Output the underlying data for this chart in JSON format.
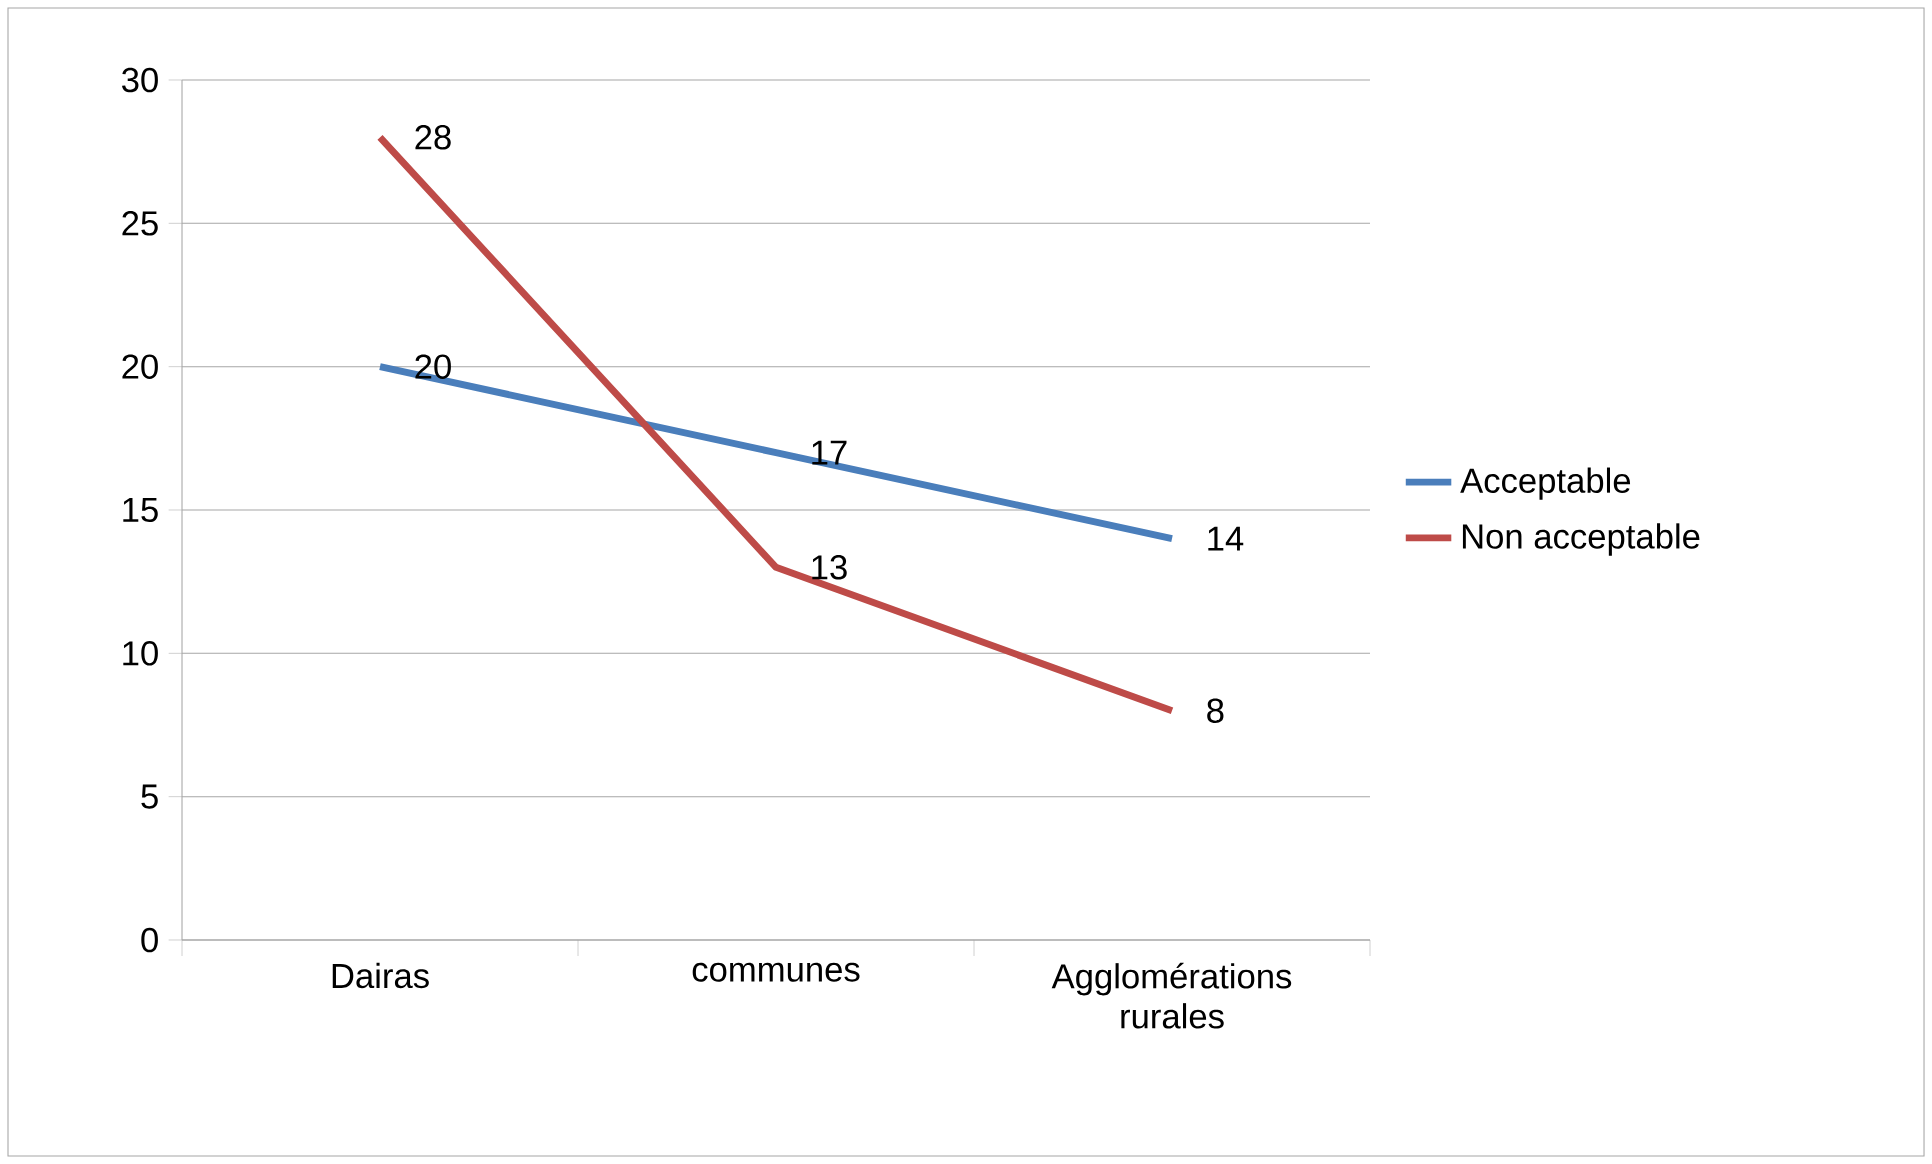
{
  "chart_data": {
    "type": "line",
    "categories": [
      "Dairas",
      "communes",
      "Agglomérations rurales"
    ],
    "series": [
      {
        "name": "Acceptable",
        "color": "#4a7ebb",
        "values": [
          20,
          17,
          14
        ]
      },
      {
        "name": "Non acceptable",
        "color": "#be4b48",
        "values": [
          28,
          13,
          8
        ]
      }
    ],
    "ylim": [
      0,
      30
    ],
    "yticks": [
      0,
      5,
      10,
      15,
      20,
      25,
      30
    ],
    "grid": "y",
    "legend": "right",
    "data_labels": true,
    "marker": "none",
    "line_style": "solid"
  }
}
